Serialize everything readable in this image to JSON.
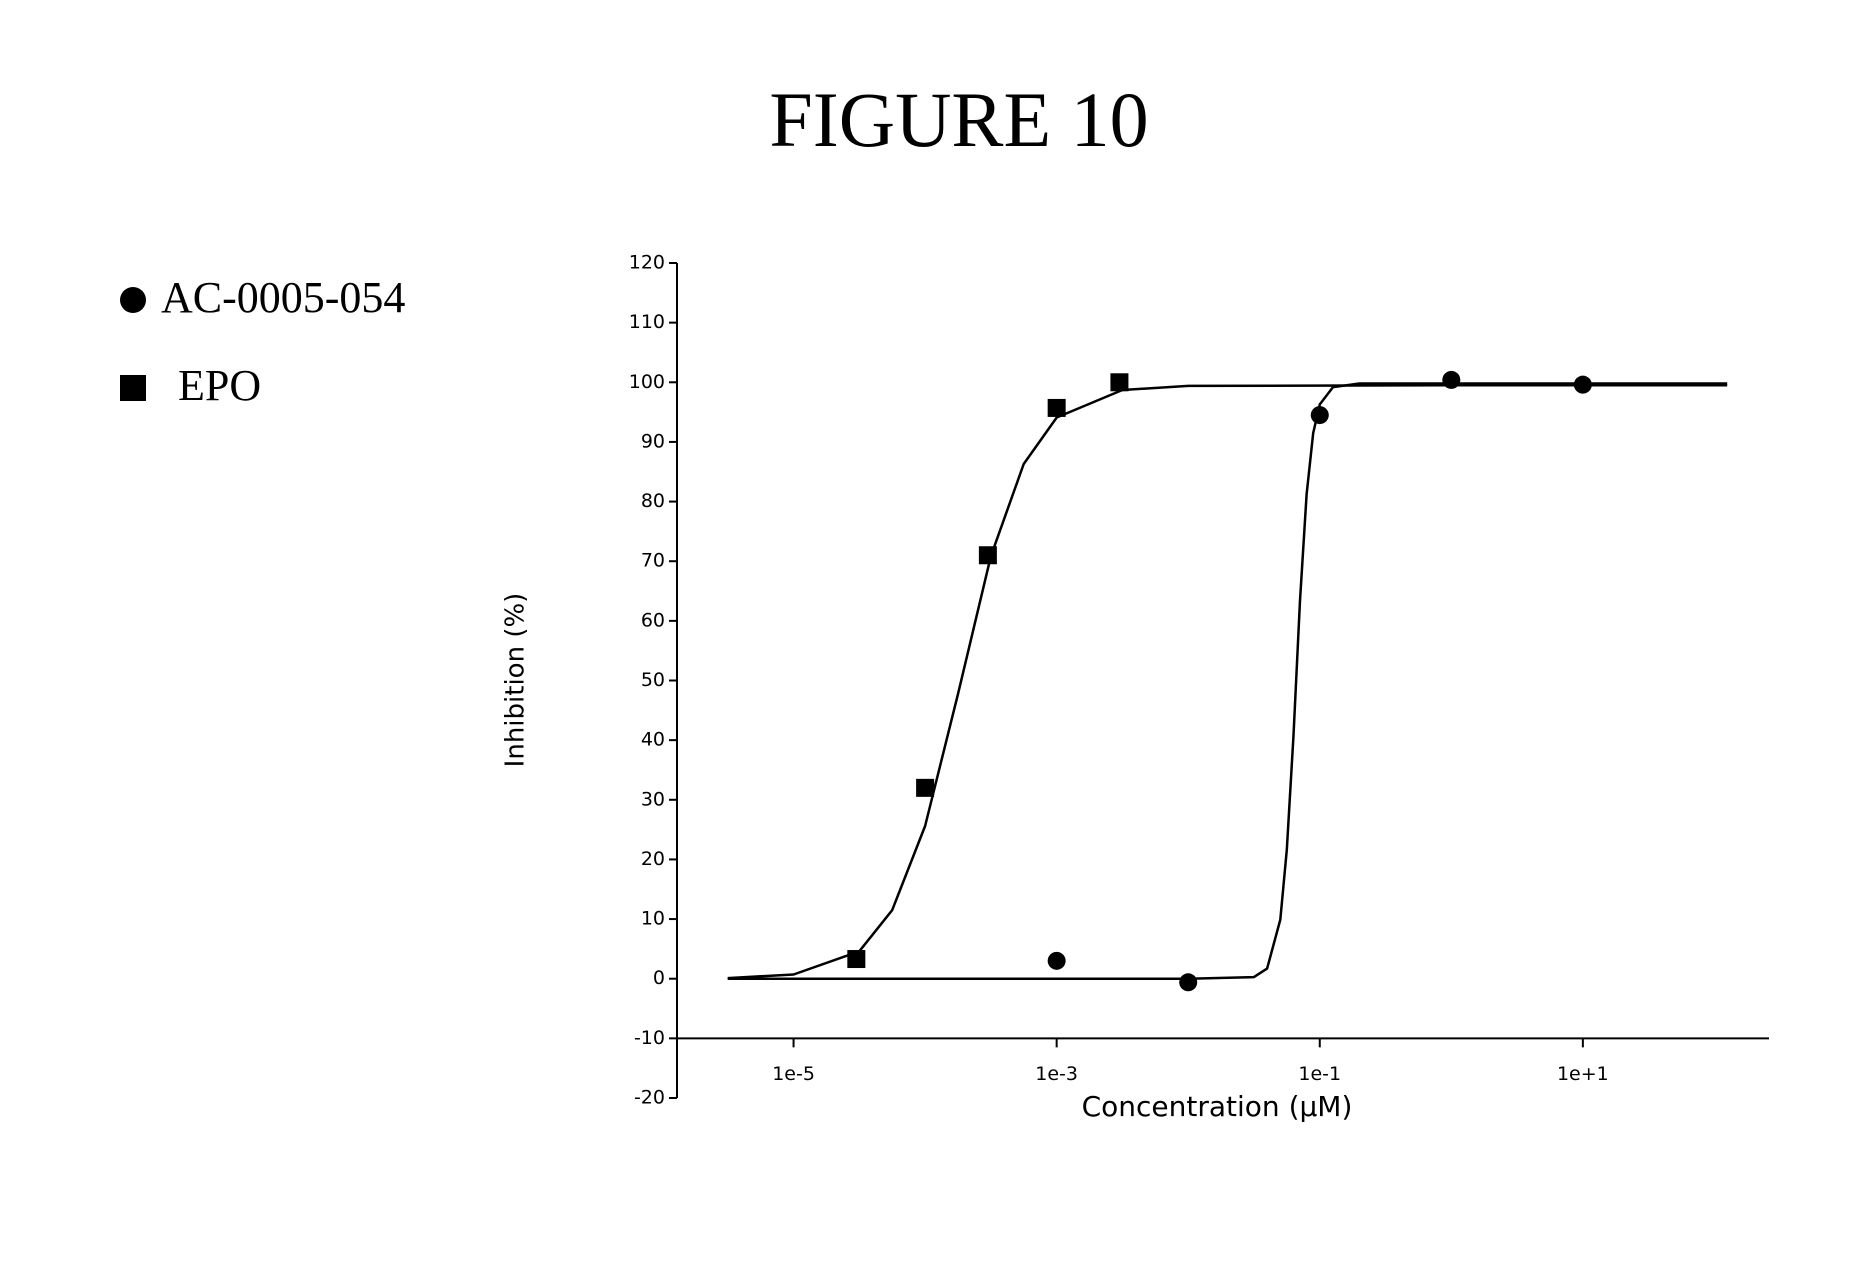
{
  "chart_data": {
    "type": "scatter",
    "title": "FIGURE 10",
    "x_label": "Concentration (µM)",
    "y_label": "Inhibition (%)",
    "log_x": true,
    "color": "#000000",
    "xlim": [
      1.3e-06,
      260
    ],
    "ylim": [
      -20,
      120
    ],
    "xticks": [
      {
        "value": 1e-05,
        "label": "1e-5"
      },
      {
        "value": 0.001,
        "label": "1e-3"
      },
      {
        "value": 0.1,
        "label": "1e-1"
      },
      {
        "value": 10,
        "label": "1e+1"
      }
    ],
    "yticks": [
      -20,
      -10,
      0,
      10,
      20,
      30,
      40,
      50,
      60,
      70,
      80,
      90,
      100,
      110,
      120
    ],
    "series": [
      {
        "name": "AC-0005-054",
        "marker": "circle",
        "x": [
          0.001,
          0.01,
          0.1,
          1,
          10
        ],
        "values": [
          3,
          -0.6,
          94.5,
          100.4,
          99.6
        ],
        "fit_x": [
          3.16e-06,
          0.01,
          0.0316,
          0.0398,
          0.0501,
          0.0562,
          0.0631,
          0.0708,
          0.0794,
          0.0891,
          0.1,
          0.126,
          0.2,
          1,
          125
        ],
        "fit_values": [
          0,
          0,
          0.27,
          1.7,
          9.9,
          21.6,
          40.8,
          63.4,
          81.2,
          91.5,
          96.3,
          99.2,
          99.8,
          99.8,
          99.8
        ]
      },
      {
        "name": "EPO",
        "marker": "square",
        "x": [
          3e-05,
          0.0001,
          0.0003,
          0.001,
          0.003
        ],
        "values": [
          3.3,
          32,
          71,
          95.7,
          100
        ],
        "fit_x": [
          3.16e-06,
          1e-05,
          3.16e-05,
          5.62e-05,
          0.0001,
          0.000178,
          0.000316,
          0.000562,
          0.001,
          0.00316,
          0.01,
          1,
          125
        ],
        "fit_values": [
          0.1,
          0.7,
          4.6,
          11.5,
          25.6,
          47.8,
          70.8,
          86.3,
          94.1,
          98.7,
          99.4,
          99.5,
          99.5
        ]
      }
    ]
  }
}
